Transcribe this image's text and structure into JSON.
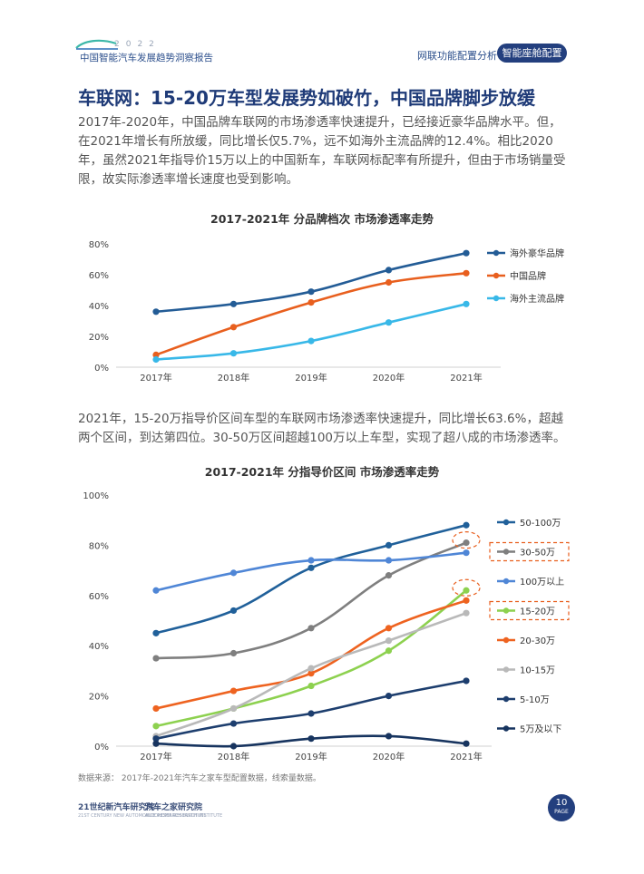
{
  "header": {
    "year": "2022",
    "brand": "中国智能汽车发展趋势洞察报告",
    "nav_link": "网联功能配置分析",
    "nav_active": "智能座舱配置"
  },
  "page_title": "车联网：15-20万车型发展势如破竹，中国品牌脚步放缓",
  "paragraph1": "2017年-2020年，中国品牌车联网的市场渗透率快速提升，已经接近豪华品牌水平。但，在2021年增长有所放缓，同比增长仅5.7%，远不如海外主流品牌的12.4%。相比2020年，虽然2021年指导价15万以上的中国新车，车联网标配率有所提升，但由于市场销量受限，故实际渗透率增长速度也受到影响。",
  "paragraph2": "2021年，15-20万指导价区间车型的车联网市场渗透率快速提升，同比增长63.6%，超越两个区间，到达第四位。30-50万区间超越100万以上车型，实现了超八成的市场渗透率。",
  "source": "数据来源： 2017年-2021年汽车之家车型配置数据，线索量数据。",
  "footer": {
    "logo1": "21世纪新汽车研究院",
    "logo1_sub": "21ST CENTURY NEW AUTOMOBILE RESEARCH INSTITUTE",
    "logo2": "汽车之家研究院",
    "logo2_sub": "AUTOHOME RESEARCH INSTITUTE",
    "page_number": "10",
    "page_word": "PAGE"
  },
  "chart_data": [
    {
      "type": "line",
      "title": "2017-2021年 分品牌档次 市场渗透率走势",
      "xlabel": "",
      "ylabel": "",
      "categories": [
        "2017年",
        "2018年",
        "2019年",
        "2020年",
        "2021年"
      ],
      "ylim": [
        0,
        80
      ],
      "yticks": [
        "0%",
        "20%",
        "40%",
        "60%",
        "80%"
      ],
      "grid": false,
      "legend_position": "right",
      "series": [
        {
          "name": "海外豪华品牌",
          "color": "#235c96",
          "values": [
            36,
            41,
            49,
            63,
            74
          ]
        },
        {
          "name": "中国品牌",
          "color": "#e85f1e",
          "values": [
            8,
            26,
            42,
            55,
            61
          ]
        },
        {
          "name": "海外主流品牌",
          "color": "#38b8e8",
          "values": [
            5,
            9,
            17,
            29,
            41
          ]
        }
      ]
    },
    {
      "type": "line",
      "title": "2017-2021年 分指导价区间 市场渗透率走势",
      "xlabel": "",
      "ylabel": "",
      "categories": [
        "2017年",
        "2018年",
        "2019年",
        "2020年",
        "2021年"
      ],
      "ylim": [
        0,
        100
      ],
      "yticks": [
        "0%",
        "20%",
        "40%",
        "60%",
        "80%",
        "100%"
      ],
      "grid": false,
      "legend_position": "right",
      "highlighted_series": [
        "30-50万",
        "15-20万"
      ],
      "series": [
        {
          "name": "50-100万",
          "color": "#20609a",
          "values": [
            45,
            54,
            71,
            80,
            88
          ]
        },
        {
          "name": "30-50万",
          "color": "#7f7f7f",
          "values": [
            35,
            37,
            47,
            68,
            81
          ]
        },
        {
          "name": "100万以上",
          "color": "#4f86d6",
          "values": [
            62,
            69,
            74,
            74,
            77
          ]
        },
        {
          "name": "15-20万",
          "color": "#8dd14f",
          "values": [
            8,
            15,
            24,
            38,
            62
          ]
        },
        {
          "name": "20-30万",
          "color": "#ee6320",
          "values": [
            15,
            22,
            29,
            47,
            58
          ]
        },
        {
          "name": "10-15万",
          "color": "#b9b9b9",
          "values": [
            4,
            15,
            31,
            42,
            53
          ]
        },
        {
          "name": "5-10万",
          "color": "#1d3e6e",
          "values": [
            3,
            9,
            13,
            20,
            26
          ]
        },
        {
          "name": "5万及以下",
          "color": "#17345f",
          "values": [
            1,
            0,
            3,
            4,
            1
          ]
        }
      ]
    }
  ]
}
